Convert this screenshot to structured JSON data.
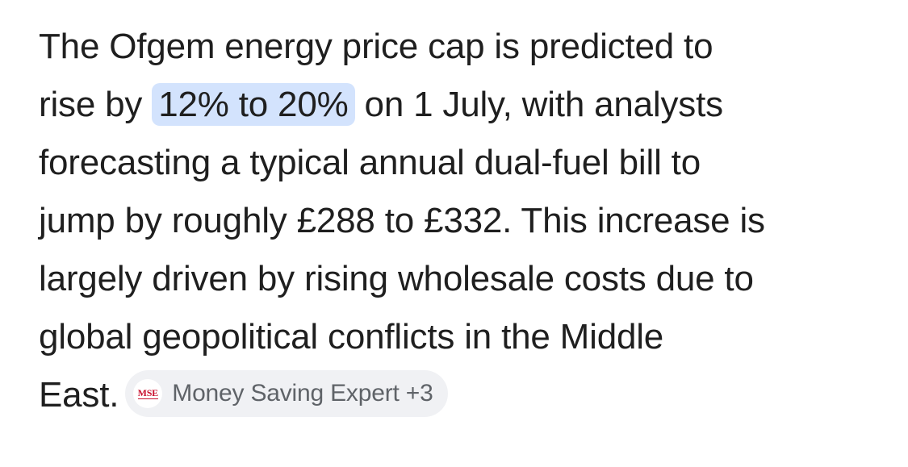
{
  "answer": {
    "line1": "The Ofgem energy price cap is predicted to",
    "line2_before": "rise by",
    "highlight": "12% to 20%",
    "line2_after": "on 1 July, with analysts",
    "line3": "forecasting a typical annual dual-fuel bill to",
    "line4": "jump by roughly £288 to £332. This increase is",
    "line5": "largely driven by rising wholesale costs due to",
    "line6": "global geopolitical conflicts in the Middle",
    "line7": "East."
  },
  "source_chip": {
    "logo_text": "MSE",
    "label": "Money Saving Expert +3",
    "logo_color": "#c8102e"
  },
  "colors": {
    "highlight_bg": "#d3e3fd",
    "chip_bg": "#f0f1f4",
    "text": "#1f1f1f"
  }
}
